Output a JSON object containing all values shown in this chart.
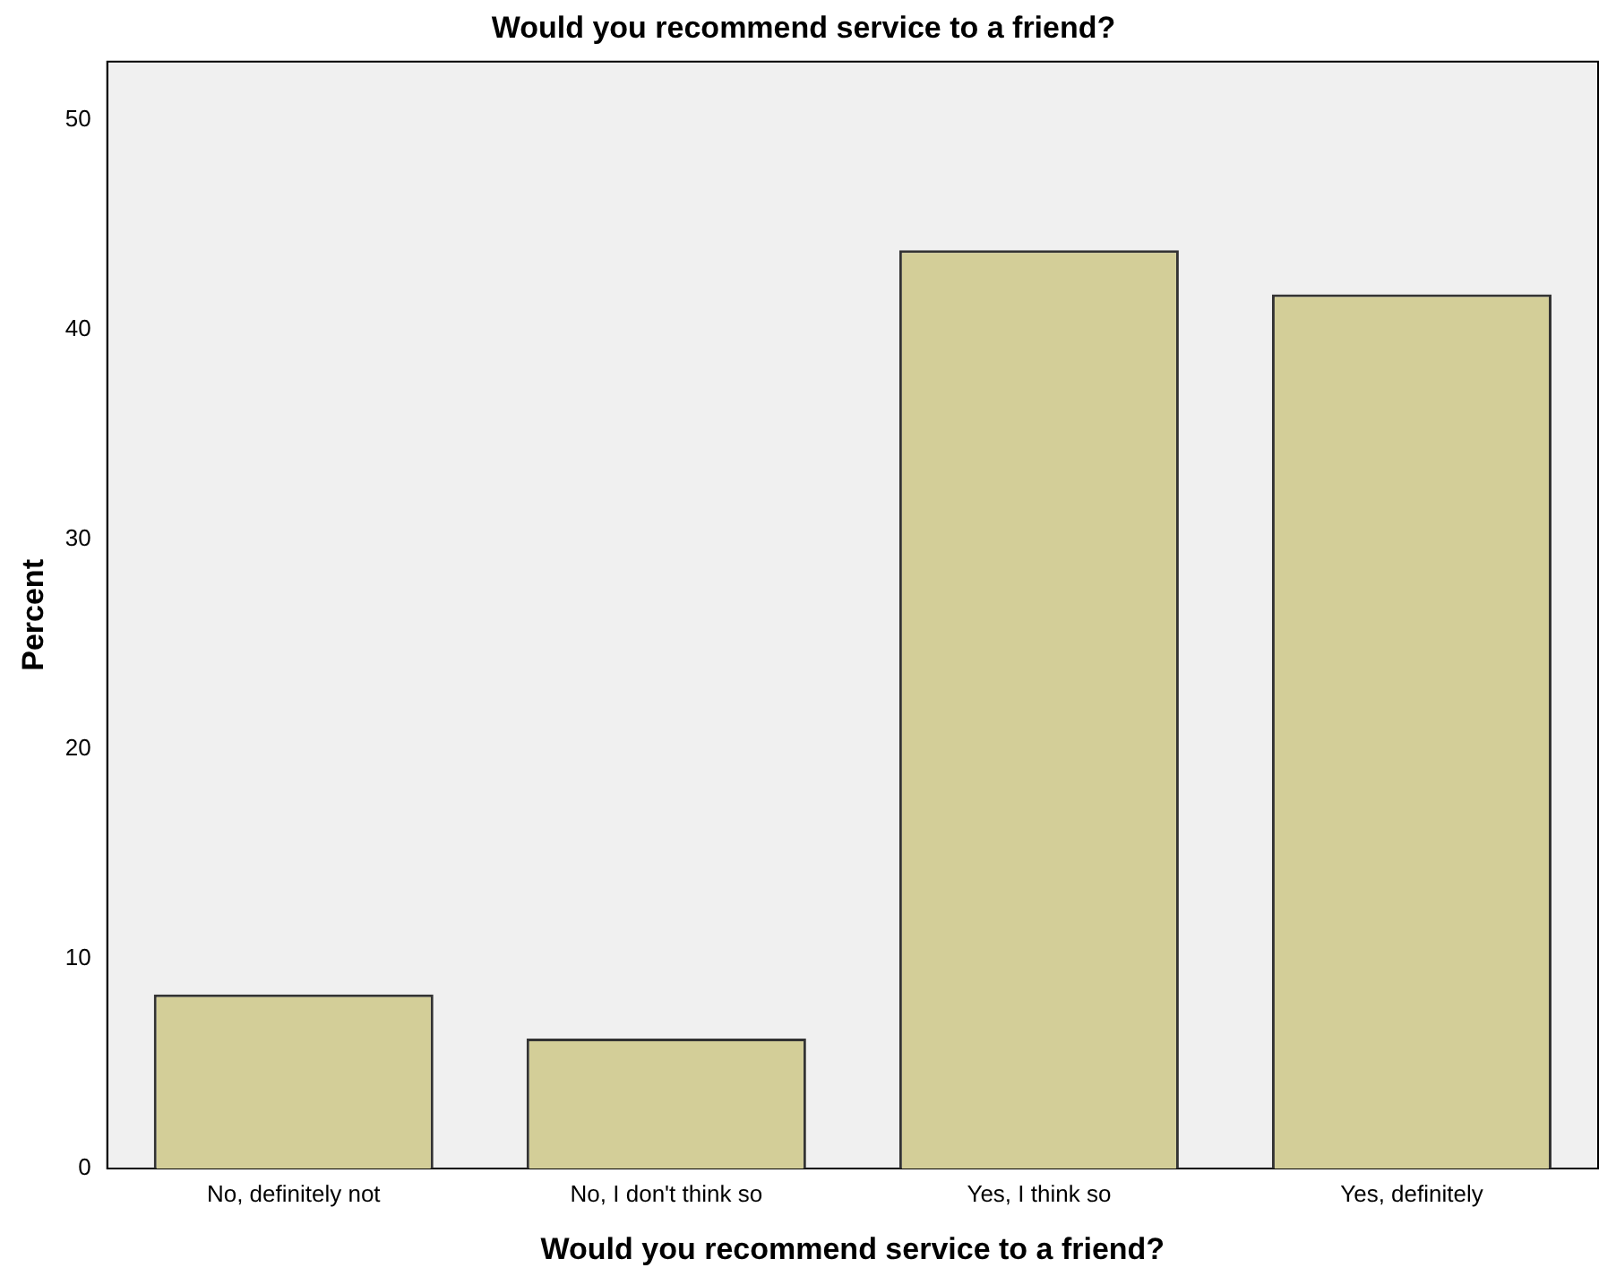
{
  "chart_data": {
    "type": "bar",
    "title": "Would you recommend service to a friend?",
    "xlabel": "Would you recommend service to a friend?",
    "ylabel": "Percent",
    "categories": [
      "No, definitely not",
      "No, I don't think so",
      "Yes, I think so",
      "Yes, definitely"
    ],
    "values": [
      8.3,
      6.2,
      43.8,
      41.7
    ],
    "color": "#d3ce98",
    "ylim": [
      0,
      52.8
    ],
    "yticks": [
      0,
      10,
      20,
      30,
      40,
      50
    ],
    "grid": false,
    "legend": false
  }
}
